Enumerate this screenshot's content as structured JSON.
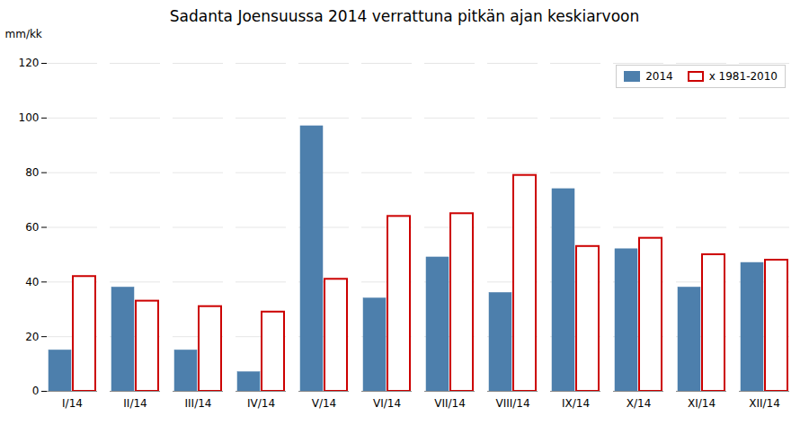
{
  "chart_data": {
    "type": "bar",
    "title": "Sadanta  Joensuussa 2014 verrattuna pitkän ajan keskiarvoon",
    "y_label": "mm/kk",
    "categories": [
      "I/14",
      "II/14",
      "III/14",
      "IV/14",
      "V/14",
      "VI/14",
      "VII/14",
      "VIII/14",
      "IX/14",
      "X/14",
      "XI/14",
      "XII/14"
    ],
    "series": [
      {
        "name": "2014",
        "color": "#4d7fac",
        "values": [
          15,
          38,
          15,
          7,
          97,
          34,
          49,
          36,
          74,
          52,
          38,
          47
        ]
      },
      {
        "name": "x 1981-2010",
        "color": "#cc0000",
        "values": [
          42,
          33,
          31,
          29,
          41,
          64,
          65,
          79,
          53,
          56,
          50,
          48
        ]
      }
    ],
    "ylim": [
      0,
      120
    ],
    "yticks": [
      0,
      20,
      40,
      60,
      80,
      100,
      120
    ],
    "grid": true,
    "legend": "upper right"
  }
}
